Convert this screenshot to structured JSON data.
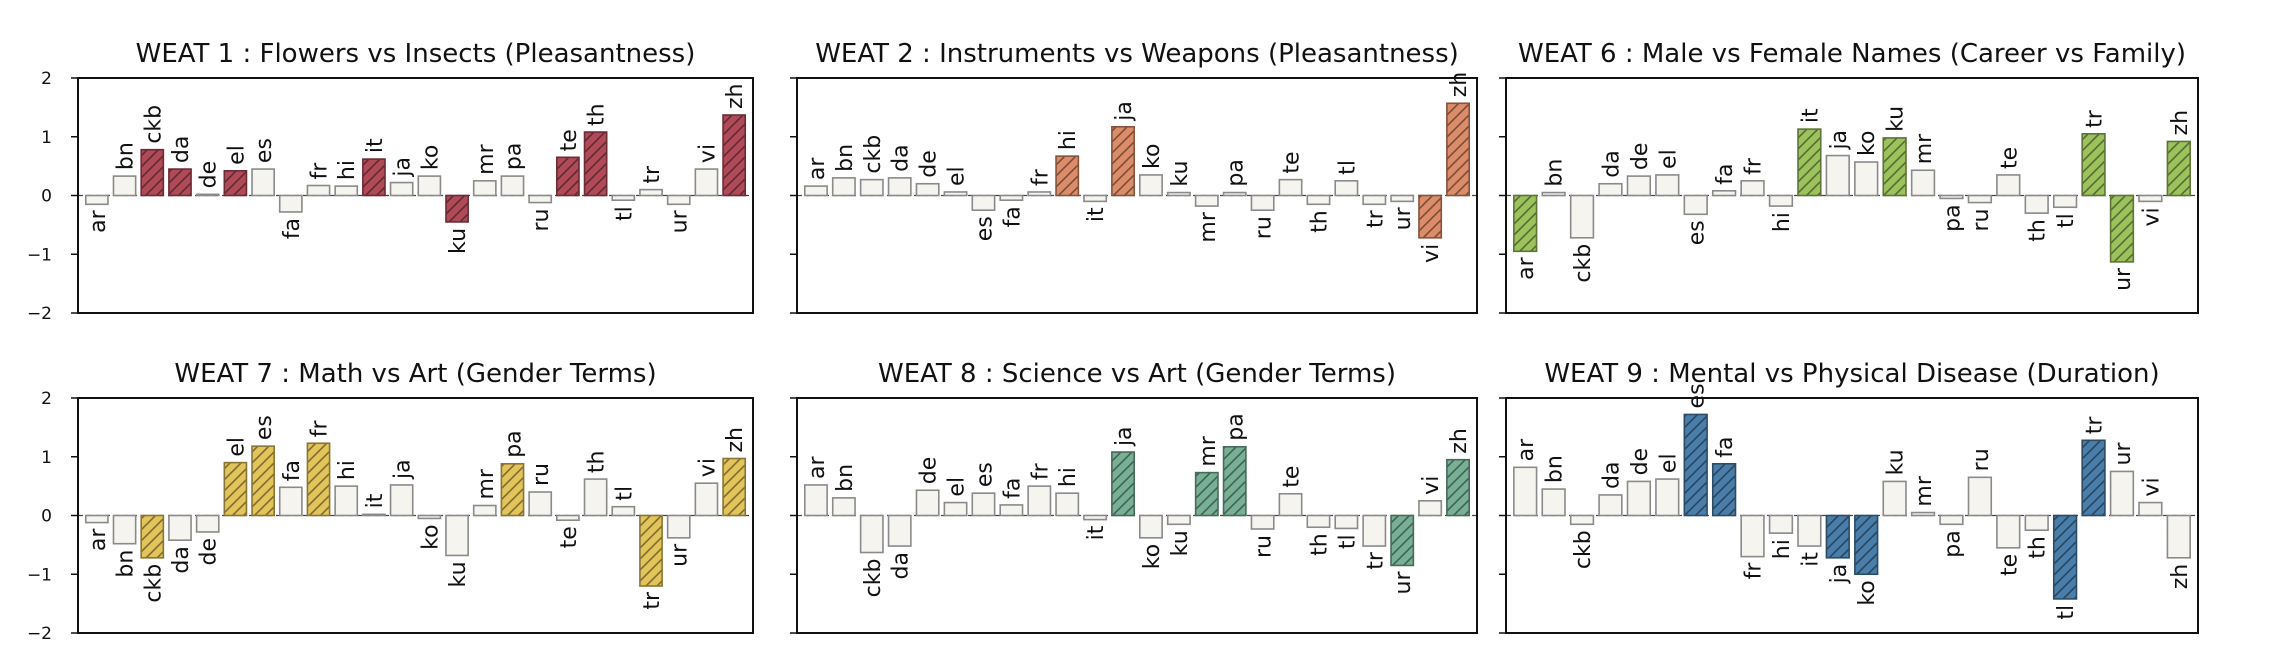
{
  "chart_data": [
    {
      "type": "bar",
      "title": "WEAT 1 : Flowers vs Insects (Pleasantness)",
      "color": "#b04a58",
      "ylim": [
        -2,
        2
      ],
      "yticks": [
        "2",
        "1",
        "0",
        "−1",
        "−2"
      ],
      "categories": [
        "ar",
        "bn",
        "ckb",
        "da",
        "de",
        "el",
        "es",
        "fa",
        "fr",
        "hi",
        "it",
        "ja",
        "ko",
        "ku",
        "mr",
        "pa",
        "ru",
        "te",
        "th",
        "tl",
        "tr",
        "ur",
        "vi",
        "zh"
      ],
      "values": [
        -0.15,
        0.33,
        0.78,
        0.45,
        0.02,
        0.42,
        0.45,
        -0.28,
        0.17,
        0.16,
        0.62,
        0.22,
        0.33,
        -0.45,
        0.25,
        0.33,
        -0.12,
        0.65,
        1.08,
        -0.08,
        0.1,
        -0.15,
        0.45,
        1.37
      ],
      "highlighted": [
        "ckb",
        "da",
        "el",
        "it",
        "ku",
        "te",
        "th",
        "zh"
      ]
    },
    {
      "type": "bar",
      "title": "WEAT 2 : Instruments vs Weapons (Pleasantness)",
      "color": "#dc8c68",
      "ylim": [
        -2,
        2
      ],
      "yticks": [
        "2",
        "1",
        "0",
        "−1",
        "−2"
      ],
      "categories": [
        "ar",
        "bn",
        "ckb",
        "da",
        "de",
        "el",
        "es",
        "fa",
        "fr",
        "hi",
        "it",
        "ja",
        "ko",
        "ku",
        "mr",
        "pa",
        "ru",
        "te",
        "th",
        "tl",
        "tr",
        "ur",
        "vi",
        "zh"
      ],
      "values": [
        0.16,
        0.3,
        0.27,
        0.3,
        0.2,
        0.06,
        -0.25,
        -0.08,
        0.06,
        0.67,
        -0.1,
        1.17,
        0.35,
        0.05,
        -0.18,
        0.05,
        -0.25,
        0.27,
        -0.15,
        0.25,
        -0.15,
        -0.1,
        -0.72,
        1.57
      ],
      "highlighted": [
        "hi",
        "ja",
        "vi",
        "zh"
      ]
    },
    {
      "type": "bar",
      "title": "WEAT 6 : Male vs Female Names (Career vs Family)",
      "color": "#9cc25c",
      "ylim": [
        -2,
        2
      ],
      "yticks": [
        "2",
        "1",
        "0",
        "−1",
        "−2"
      ],
      "categories": [
        "ar",
        "bn",
        "ckb",
        "da",
        "de",
        "el",
        "es",
        "fa",
        "fr",
        "hi",
        "it",
        "ja",
        "ko",
        "ku",
        "mr",
        "pa",
        "ru",
        "te",
        "th",
        "tl",
        "tr",
        "ur",
        "vi",
        "zh"
      ],
      "values": [
        -0.95,
        0.05,
        -0.72,
        0.2,
        0.33,
        0.35,
        -0.32,
        0.08,
        0.25,
        -0.18,
        1.13,
        0.68,
        0.57,
        0.98,
        0.43,
        -0.05,
        -0.12,
        0.35,
        -0.3,
        -0.2,
        1.05,
        -1.13,
        -0.1,
        0.92
      ],
      "highlighted": [
        "ar",
        "it",
        "ku",
        "tr",
        "ur",
        "zh"
      ]
    },
    {
      "type": "bar",
      "title": "WEAT 7 : Math vs Art (Gender Terms)",
      "color": "#e3c45a",
      "ylim": [
        -2,
        2
      ],
      "yticks": [
        "2",
        "1",
        "0",
        "−1",
        "−2"
      ],
      "categories": [
        "ar",
        "bn",
        "ckb",
        "da",
        "de",
        "el",
        "es",
        "fa",
        "fr",
        "hi",
        "it",
        "ja",
        "ko",
        "ku",
        "mr",
        "pa",
        "ru",
        "te",
        "th",
        "tl",
        "tr",
        "ur",
        "vi",
        "zh"
      ],
      "values": [
        -0.12,
        -0.48,
        -0.72,
        -0.42,
        -0.28,
        0.9,
        1.18,
        0.48,
        1.23,
        0.5,
        0.02,
        0.52,
        -0.05,
        -0.68,
        0.17,
        0.88,
        0.4,
        -0.08,
        0.62,
        0.15,
        -1.2,
        -0.38,
        0.55,
        0.97
      ],
      "highlighted": [
        "ckb",
        "el",
        "es",
        "fr",
        "pa",
        "tr",
        "zh"
      ]
    },
    {
      "type": "bar",
      "title": "WEAT 8 : Science vs Art (Gender Terms)",
      "color": "#78b096",
      "ylim": [
        -2,
        2
      ],
      "yticks": [
        "2",
        "1",
        "0",
        "−1",
        "−2"
      ],
      "categories": [
        "ar",
        "bn",
        "ckb",
        "da",
        "de",
        "el",
        "es",
        "fa",
        "fr",
        "hi",
        "it",
        "ja",
        "ko",
        "ku",
        "mr",
        "pa",
        "ru",
        "te",
        "th",
        "tl",
        "tr",
        "ur",
        "vi",
        "zh"
      ],
      "values": [
        0.52,
        0.3,
        -0.63,
        -0.52,
        0.43,
        0.22,
        0.38,
        0.18,
        0.5,
        0.38,
        -0.07,
        1.08,
        -0.38,
        -0.15,
        0.73,
        1.17,
        -0.23,
        0.37,
        -0.2,
        -0.22,
        -0.52,
        -0.85,
        0.25,
        0.95
      ],
      "highlighted": [
        "ja",
        "mr",
        "pa",
        "ur",
        "zh"
      ]
    },
    {
      "type": "bar",
      "title": "WEAT 9 : Mental vs Physical Disease (Duration)",
      "color": "#4a7eaa",
      "ylim": [
        -2,
        2
      ],
      "yticks": [
        "2",
        "1",
        "0",
        "−1",
        "−2"
      ],
      "categories": [
        "ar",
        "bn",
        "ckb",
        "da",
        "de",
        "el",
        "es",
        "fa",
        "fr",
        "hi",
        "it",
        "ja",
        "ko",
        "ku",
        "mr",
        "pa",
        "ru",
        "te",
        "th",
        "tl",
        "tr",
        "ur",
        "vi",
        "zh"
      ],
      "values": [
        0.82,
        0.45,
        -0.15,
        0.35,
        0.58,
        0.62,
        1.72,
        0.88,
        -0.7,
        -0.3,
        -0.52,
        -0.72,
        -1.0,
        0.58,
        0.05,
        -0.15,
        0.65,
        -0.55,
        -0.25,
        -1.42,
        1.28,
        0.75,
        0.22,
        -0.72
      ],
      "highlighted": [
        "es",
        "fa",
        "ja",
        "ko",
        "tl",
        "tr"
      ]
    }
  ]
}
